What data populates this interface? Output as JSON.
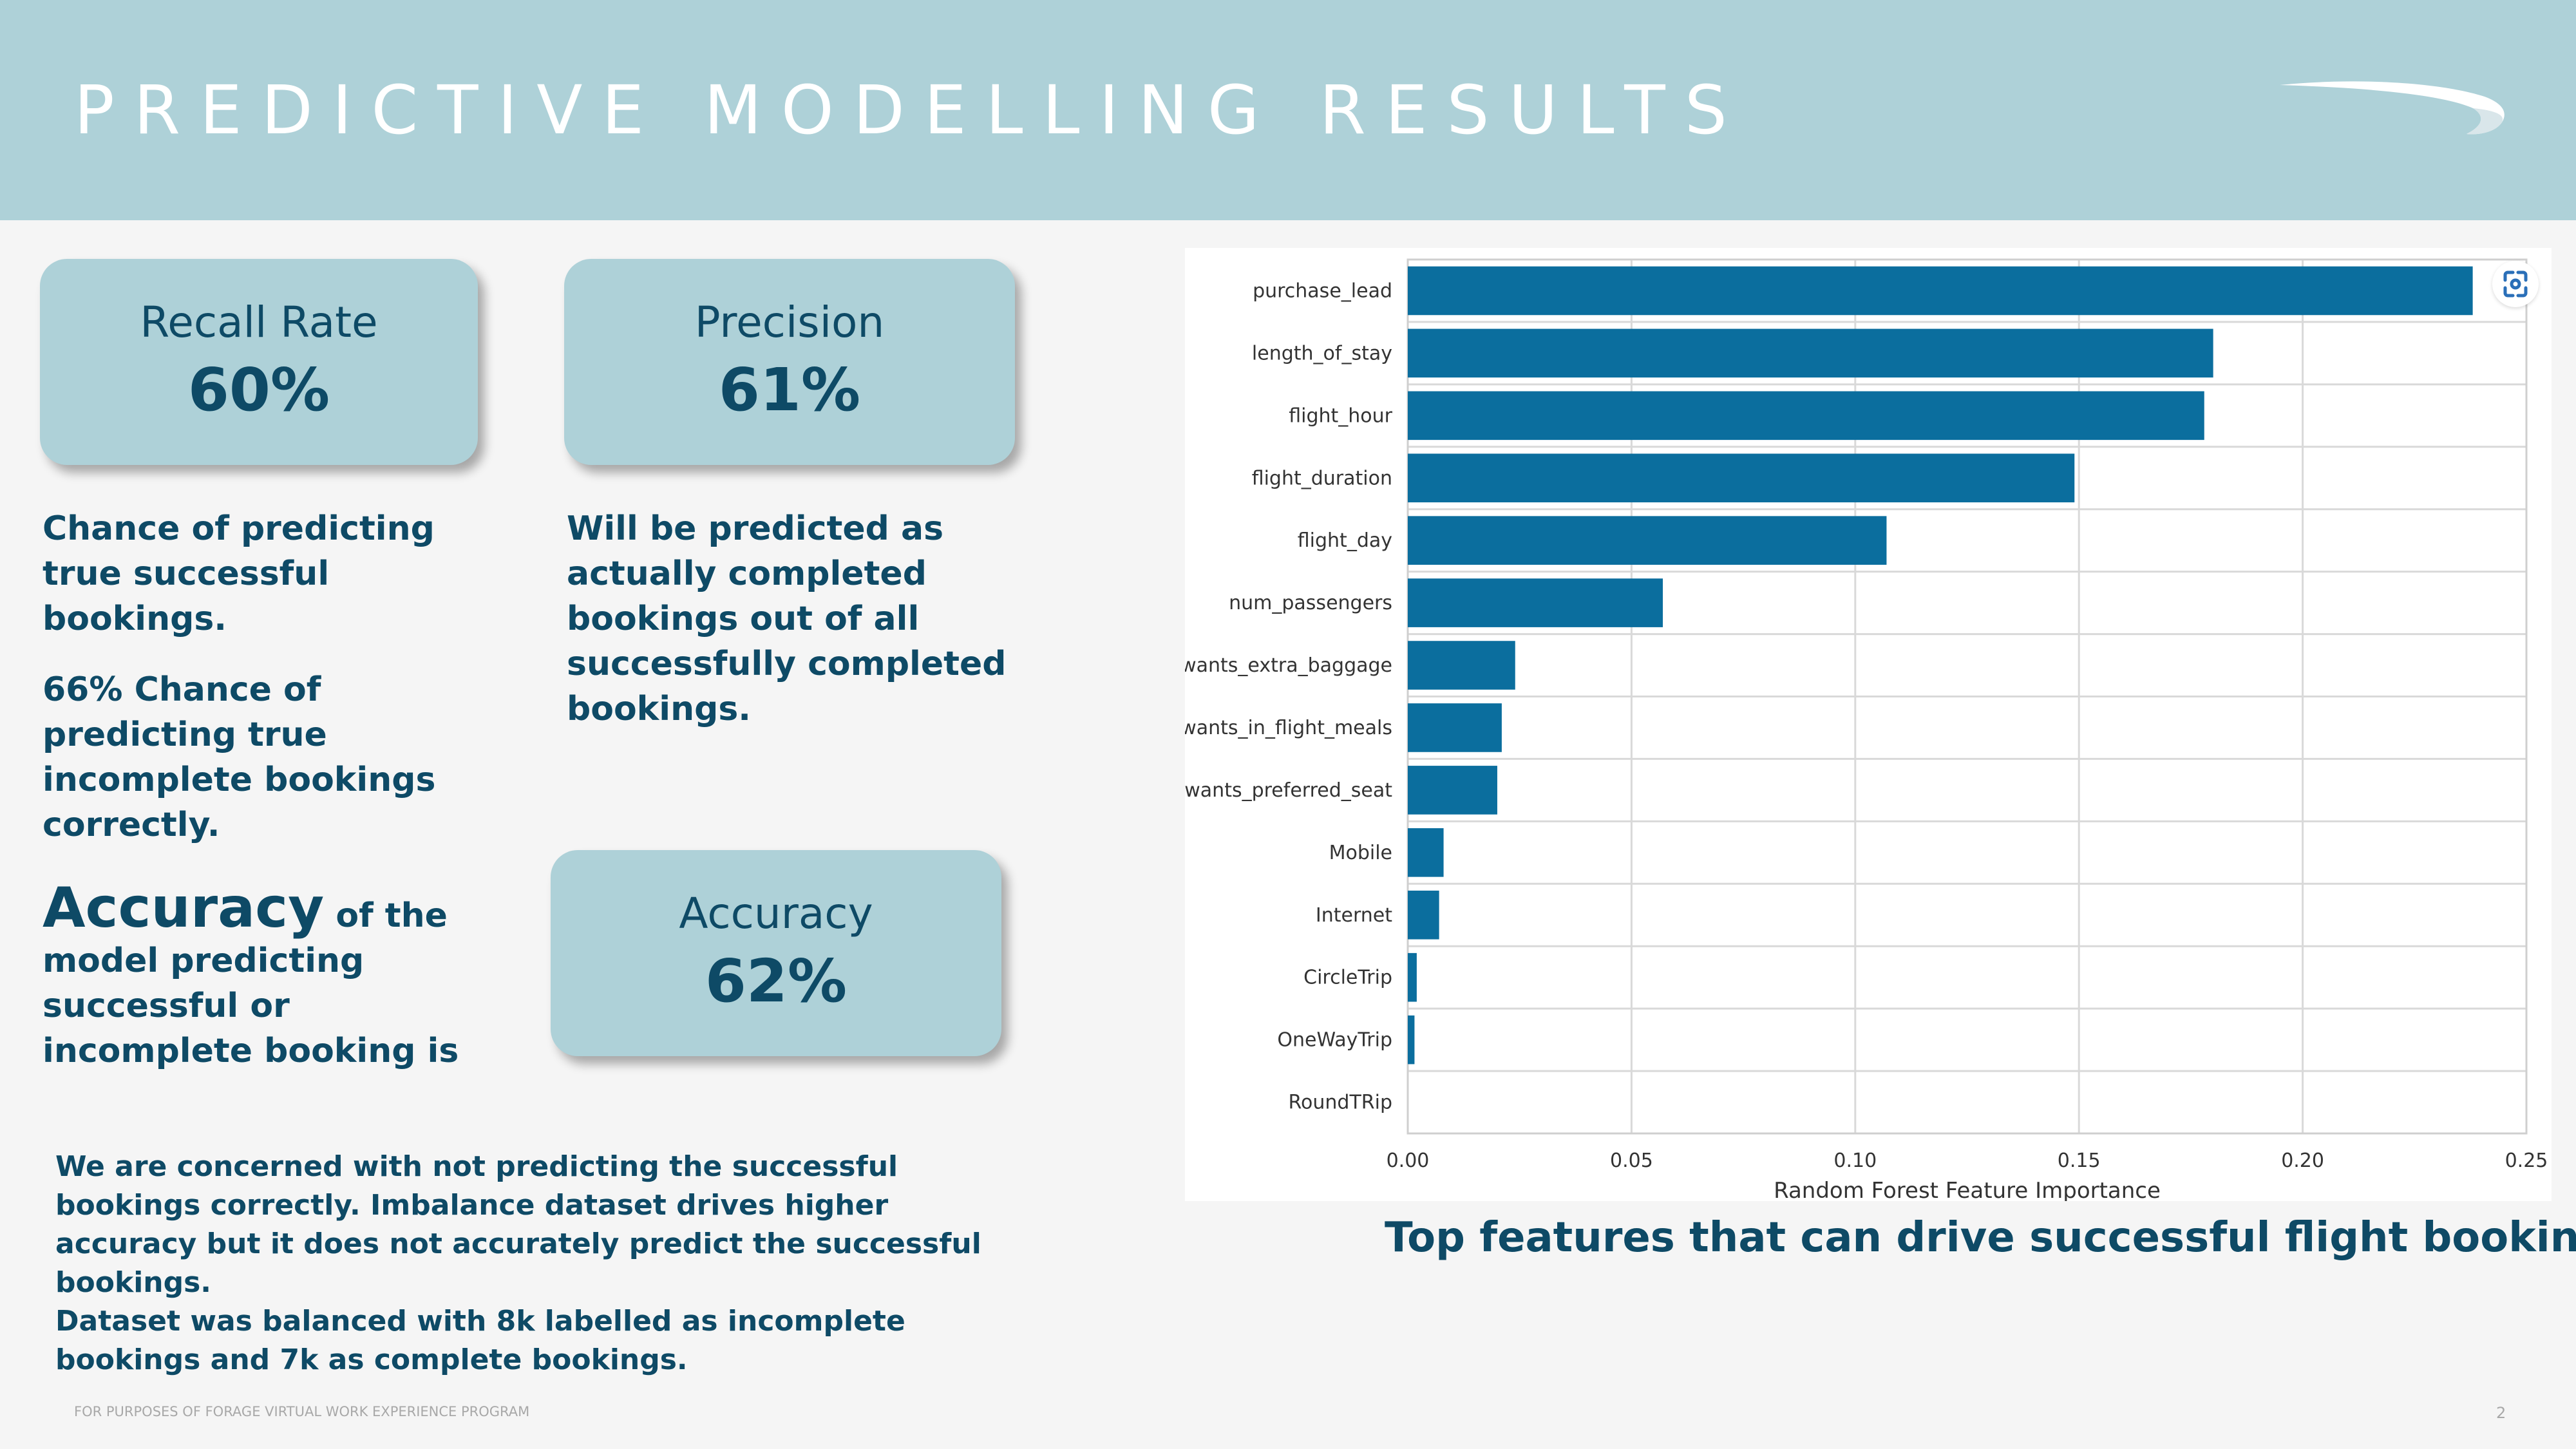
{
  "header": {
    "title": "PREDICTIVE MODELLING RESULTS"
  },
  "kpis": {
    "recall": {
      "label": "Recall Rate",
      "value": "60%"
    },
    "precision": {
      "label": "Precision",
      "value": "61%"
    },
    "accuracy": {
      "label": "Accuracy",
      "value": "62%"
    }
  },
  "text": {
    "recall_desc": "Chance of predicting true successful bookings.",
    "incomplete_desc": "66% Chance of predicting true incomplete bookings correctly.",
    "precision_desc": "Will be predicted as actually completed bookings out of all successfully completed bookings.",
    "accuracy_big": "Accuracy",
    "accuracy_rest": "of the model predicting successful or incomplete booking is",
    "concern": "We are concerned with not predicting the successful bookings correctly. Imbalance dataset drives higher accuracy but it does not accurately predict the successful bookings.",
    "dataset": "Dataset was balanced with 8k labelled as incomplete bookings and 7k as complete bookings.",
    "chart_caption": "Top features that can drive successful flight bookings.",
    "footer": "FOR PURPOSES OF FORAGE VIRTUAL WORK EXPERIENCE PROGRAM",
    "page": "2"
  },
  "icons": {
    "logo": "speedmarque-logo",
    "scan": "scan-icon"
  },
  "colors": {
    "header": "#aed1d8",
    "bar": "#0b6e9e",
    "text": "#0e4a66"
  },
  "chart_data": {
    "type": "bar",
    "orientation": "horizontal",
    "categories": [
      "purchase_lead",
      "length_of_stay",
      "flight_hour",
      "flight_duration",
      "flight_day",
      "num_passengers",
      "wants_extra_baggage",
      "wants_in_flight_meals",
      "wants_preferred_seat",
      "Mobile",
      "Internet",
      "CircleTrip",
      "OneWayTrip",
      "RoundTRip"
    ],
    "values": [
      0.238,
      0.18,
      0.178,
      0.149,
      0.107,
      0.057,
      0.024,
      0.021,
      0.02,
      0.008,
      0.007,
      0.002,
      0.0015,
      0.0
    ],
    "xlabel": "Random Forest Feature Importance",
    "ylabel": "",
    "xlim": [
      0,
      0.25
    ],
    "xticks": [
      "0.00",
      "0.05",
      "0.10",
      "0.15",
      "0.20",
      "0.25"
    ],
    "grid": true
  }
}
